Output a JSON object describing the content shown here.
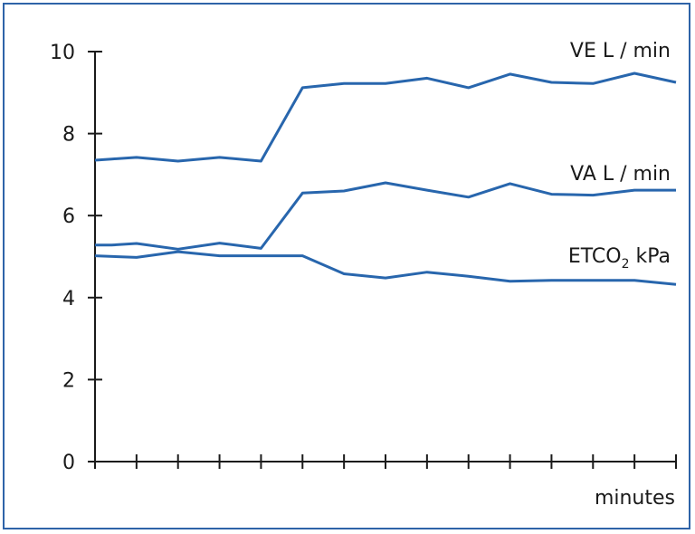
{
  "chart_data": {
    "type": "line",
    "title": "",
    "xlabel": "minutes",
    "ylabel": "",
    "ylim": [
      0,
      10
    ],
    "yticks": [
      "0",
      "2",
      "4",
      "6",
      "8",
      "10"
    ],
    "x": [
      0,
      1,
      2,
      3,
      4,
      5,
      6,
      7,
      8,
      9,
      10,
      11,
      12,
      13,
      14
    ],
    "xlim": [
      0,
      14
    ],
    "grid": false,
    "series": [
      {
        "name": "VE L / min",
        "label_main": "VE L / min",
        "label_sub": "",
        "label_suffix": "",
        "x": [
          0,
          0.4,
          1,
          2,
          3,
          4,
          5,
          6,
          7,
          8,
          9,
          10,
          11,
          12,
          13,
          14
        ],
        "values": [
          7.35,
          7.38,
          7.42,
          7.33,
          7.42,
          7.33,
          9.12,
          9.22,
          9.22,
          9.35,
          9.12,
          9.45,
          9.25,
          9.22,
          9.47,
          9.25
        ]
      },
      {
        "name": "VA L / min",
        "label_main": "VA L / min",
        "label_sub": "",
        "label_suffix": "",
        "x": [
          0,
          0.4,
          1,
          2,
          3,
          4,
          5,
          6,
          7,
          8,
          9,
          10,
          11,
          12,
          13,
          14
        ],
        "values": [
          5.28,
          5.28,
          5.32,
          5.18,
          5.33,
          5.2,
          6.55,
          6.6,
          6.8,
          6.62,
          6.45,
          6.78,
          6.52,
          6.5,
          6.62,
          6.62
        ]
      },
      {
        "name": "ETCO2 kPa",
        "label_main": "ETCO",
        "label_sub": "2",
        "label_suffix": " kPa",
        "x": [
          0,
          1,
          2,
          3,
          4,
          5,
          6,
          7,
          8,
          9,
          10,
          11,
          12,
          13,
          14
        ],
        "values": [
          5.02,
          4.98,
          5.12,
          5.02,
          5.02,
          5.02,
          4.58,
          4.48,
          4.62,
          4.52,
          4.4,
          4.42,
          4.42,
          4.42,
          4.32
        ]
      }
    ]
  },
  "colors": {
    "series": "#2866ad",
    "axis": "#1a1a1a",
    "frame": "#2e63a8"
  }
}
